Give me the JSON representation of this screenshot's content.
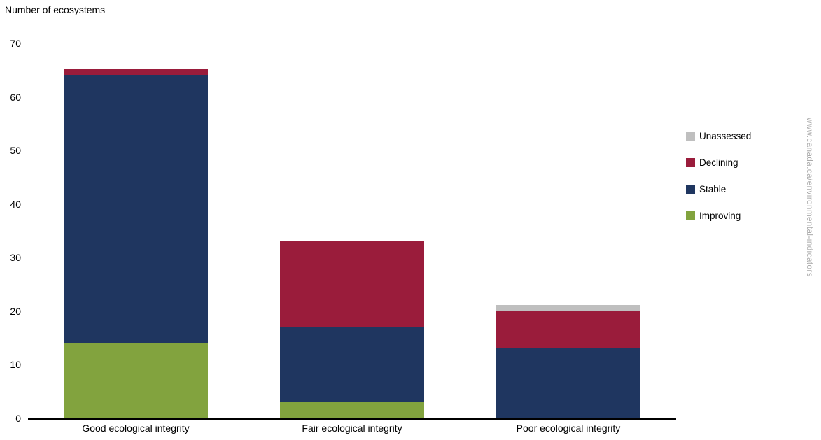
{
  "chart_data": {
    "type": "bar",
    "stacked": true,
    "title": "Number of ecosystems",
    "categories": [
      "Good ecological integrity",
      "Fair ecological integrity",
      "Poor ecological integrity"
    ],
    "series": [
      {
        "name": "Improving",
        "color": "#82a33e",
        "values": [
          14,
          3,
          0
        ]
      },
      {
        "name": "Stable",
        "color": "#1f3660",
        "values": [
          50,
          14,
          13
        ]
      },
      {
        "name": "Declining",
        "color": "#9a1c3b",
        "values": [
          1,
          16,
          7
        ]
      },
      {
        "name": "Unassessed",
        "color": "#bfbfbf",
        "values": [
          0,
          0,
          1
        ]
      }
    ],
    "stack_totals": [
      65,
      33,
      21
    ],
    "legend": [
      "Unassessed",
      "Declining",
      "Stable",
      "Improving"
    ],
    "legend_position": "right",
    "xlabel": "",
    "ylabel": "Number of ecosystems",
    "ylim": [
      0,
      70
    ],
    "ytick_step": 10,
    "yticks": [
      0,
      10,
      20,
      30,
      40,
      50,
      60,
      70
    ],
    "grid": true
  },
  "watermark": "www.canada.ca/environmental-indicators",
  "colors": {
    "gridline": "#cccccc",
    "axis": "#000000",
    "watermark_text": "#aaaaaa",
    "background": "#ffffff",
    "text": "#000000"
  }
}
